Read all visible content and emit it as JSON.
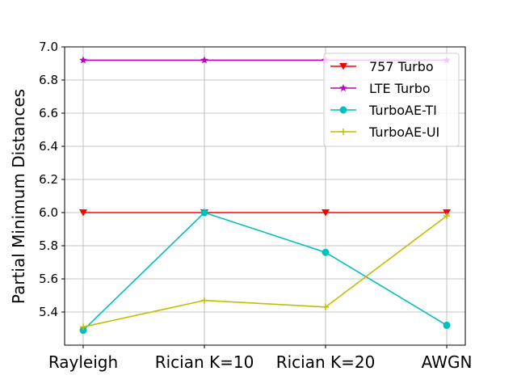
{
  "chart_data": {
    "type": "line",
    "categories": [
      "Rayleigh",
      "Rician K=10",
      "Rician K=20",
      "AWGN"
    ],
    "ylabel": "Partial Minimum Distances",
    "xlabel": "",
    "title": "",
    "ylim": [
      5.2,
      7.0
    ],
    "yticks": [
      5.4,
      5.6,
      5.8,
      6.0,
      6.2,
      6.4,
      6.6,
      6.8,
      7.0
    ],
    "grid": true,
    "legend_position": "top-right",
    "series": [
      {
        "name": "757 Turbo",
        "color": "#ff0000",
        "marker": "triangle-down",
        "values": [
          6.0,
          6.0,
          6.0,
          6.0
        ]
      },
      {
        "name": "LTE Turbo",
        "color": "#bf00bf",
        "marker": "star",
        "values": [
          6.92,
          6.92,
          6.92,
          6.92
        ]
      },
      {
        "name": "TurboAE-TI",
        "color": "#00bfbf",
        "marker": "circle",
        "values": [
          5.29,
          6.0,
          5.76,
          5.32
        ]
      },
      {
        "name": "TurboAE-UI",
        "color": "#bfbf00",
        "marker": "plus",
        "values": [
          5.31,
          5.47,
          5.43,
          5.98
        ]
      }
    ]
  }
}
